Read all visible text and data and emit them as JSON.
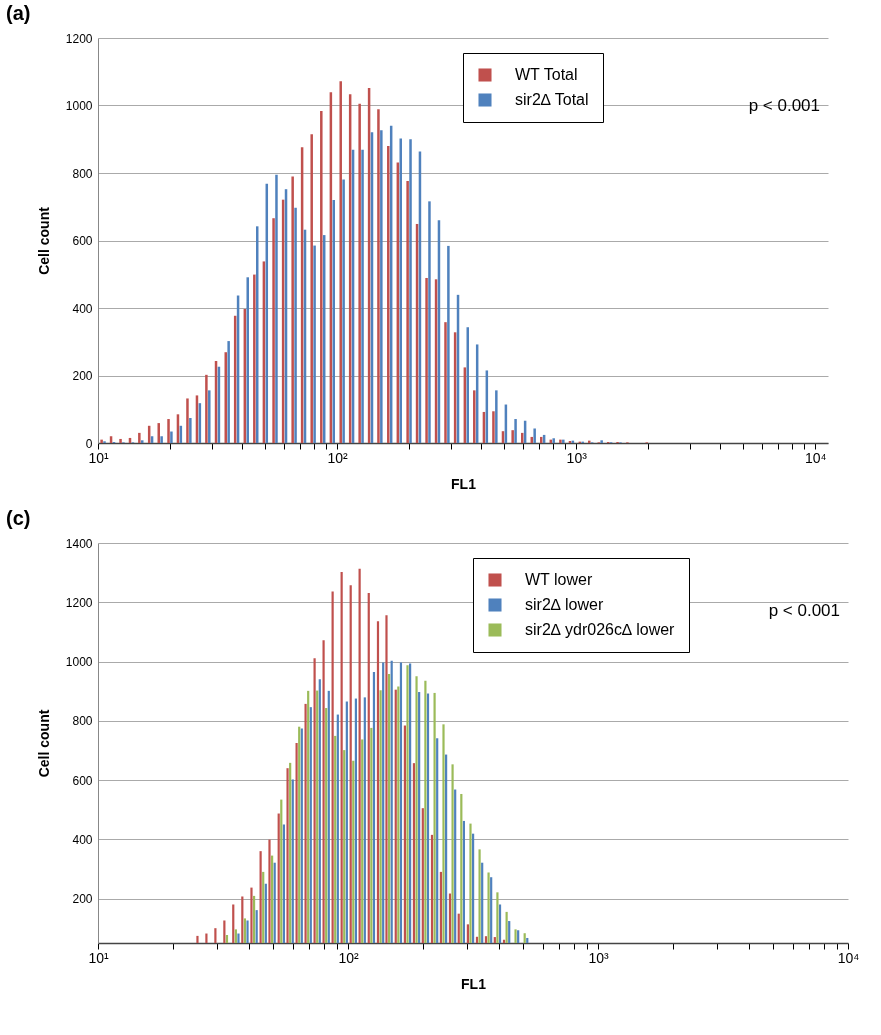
{
  "chart_data": [
    {
      "type": "bar",
      "title": "(a)",
      "xlabel": "FL1",
      "ylabel": "Cell count",
      "log": "x",
      "grid": "y",
      "legend": "top right",
      "x": [
        10.5,
        11.5,
        12.6,
        13.8,
        15.1,
        16.6,
        18.2,
        20.0,
        21.9,
        24.0,
        26.3,
        28.8,
        31.6,
        34.7,
        38.0,
        41.7,
        45.7,
        50.1,
        55.0,
        60.3,
        66.1,
        72.4,
        79.4,
        87.1,
        95.5,
        105,
        115,
        126,
        138,
        151,
        166,
        182,
        200,
        219,
        240,
        263,
        288,
        316,
        347,
        380,
        417,
        457,
        501,
        550,
        603,
        661,
        724,
        794,
        871,
        955,
        1050,
        1150,
        1260,
        1380,
        1510,
        1660,
        2000
      ],
      "series": [
        {
          "name": "WT Total",
          "color": "#c0504d",
          "values": [
            10,
            20,
            12,
            15,
            30,
            51,
            59,
            71,
            85,
            132,
            141,
            202,
            243,
            269,
            377,
            397,
            499,
            538,
            666,
            721,
            790,
            876,
            915,
            984,
            1039,
            1072,
            1033,
            1005,
            1052,
            989,
            880,
            831,
            776,
            649,
            489,
            485,
            358,
            328,
            224,
            156,
            92,
            94,
            35,
            38,
            30,
            18,
            18,
            10,
            10,
            6,
            4,
            7,
            2,
            3,
            3,
            2,
            2
          ]
        },
        {
          "name": "sir2∆ Total",
          "color": "#4f81bd",
          "values": [
            5,
            3,
            2,
            2,
            8,
            20,
            20,
            34,
            51,
            74,
            118,
            156,
            226,
            302,
            437,
            491,
            642,
            768,
            795,
            752,
            697,
            632,
            585,
            616,
            720,
            781,
            869,
            869,
            921,
            927,
            940,
            902,
            900,
            864,
            716,
            660,
            584,
            439,
            343,
            292,
            215,
            156,
            114,
            71,
            66,
            43,
            24,
            14,
            10,
            7,
            4,
            2,
            8,
            2,
            2,
            null,
            0
          ]
        }
      ],
      "xlim": [
        10,
        11300
      ],
      "xticks": [
        {
          "value": 10,
          "label": "10¹"
        },
        {
          "value": 20,
          "label": null
        },
        {
          "value": 30,
          "label": null
        },
        {
          "value": 40,
          "label": null
        },
        {
          "value": 50,
          "label": null
        },
        {
          "value": 60,
          "label": null
        },
        {
          "value": 70,
          "label": null
        },
        {
          "value": 80,
          "label": null
        },
        {
          "value": 90,
          "label": null
        },
        {
          "value": 100,
          "label": "10²"
        },
        {
          "value": 200,
          "label": null
        },
        {
          "value": 300,
          "label": null
        },
        {
          "value": 400,
          "label": null
        },
        {
          "value": 500,
          "label": null
        },
        {
          "value": 600,
          "label": null
        },
        {
          "value": 700,
          "label": null
        },
        {
          "value": 800,
          "label": null
        },
        {
          "value": 900,
          "label": null
        },
        {
          "value": 1000,
          "label": "10³"
        },
        {
          "value": 2000,
          "label": null
        },
        {
          "value": 3000,
          "label": null
        },
        {
          "value": 4000,
          "label": null
        },
        {
          "value": 5000,
          "label": null
        },
        {
          "value": 6000,
          "label": null
        },
        {
          "value": 7000,
          "label": null
        },
        {
          "value": 8000,
          "label": null
        },
        {
          "value": 9000,
          "label": null
        },
        {
          "value": 10000,
          "label": "10⁴"
        }
      ],
      "ylim": [
        0,
        1200
      ],
      "yticks": [
        0,
        200,
        400,
        600,
        800,
        1000,
        1200
      ],
      "annotations": [
        "p < 0.001"
      ]
    },
    {
      "type": "bar",
      "title": "(c)",
      "xlabel": "FL1",
      "ylabel": "Cell count",
      "log": "x",
      "grid": "y",
      "legend": "top right",
      "x": [
        25.6,
        27.8,
        30.2,
        32.8,
        35.6,
        38.7,
        42.1,
        45.8,
        49.7,
        54.1,
        58.7,
        63.8,
        69.3,
        75.3,
        81.8,
        88.9,
        96.6,
        105,
        114,
        124,
        135,
        146,
        159,
        173,
        188,
        204,
        222,
        241,
        262,
        284,
        309,
        336,
        365,
        396,
        431,
        468,
        509
      ],
      "series": [
        {
          "name": "WT lower",
          "color": "#c0504d",
          "values": [
            74,
            82,
            100,
            126,
            180,
            207,
            237,
            360,
            399,
            487,
            640,
            725,
            857,
            1011,
            1072,
            1236,
            1302,
            1257,
            1313,
            1231,
            1136,
            1156,
            905,
            784,
            657,
            505,
            415,
            290,
            217,
            149,
            113,
            71,
            73,
            70,
            61,
            null,
            null
          ]
        },
        {
          "name": "sir2∆ lower",
          "color": "#4f81bd",
          "values": [
            null,
            null,
            null,
            null,
            82,
            126,
            161,
            250,
            321,
            450,
            602,
            774,
            846,
            940,
            901,
            821,
            865,
            875,
            879,
            965,
            997,
            1003,
            997,
            993,
            897,
            892,
            741,
            686,
            568,
            462,
            419,
            321,
            272,
            180,
            124,
            93,
            67
          ]
        },
        {
          "name": "sir2∆ ydr026c∆ lower",
          "color": "#9bbb59",
          "values": [
            null,
            null,
            null,
            77,
            96,
            133,
            209,
            290,
            345,
            534,
            658,
            780,
            901,
            902,
            843,
            749,
            701,
            665,
            737,
            776,
            903,
            958,
            916,
            987,
            950,
            935,
            894,
            788,
            653,
            553,
            453,
            366,
            288,
            221,
            155,
            96,
            83
          ]
        }
      ],
      "xlim": [
        10,
        10000
      ],
      "xticks": [
        {
          "value": 10,
          "label": "10¹"
        },
        {
          "value": 20,
          "label": null
        },
        {
          "value": 30,
          "label": null
        },
        {
          "value": 40,
          "label": null
        },
        {
          "value": 50,
          "label": null
        },
        {
          "value": 60,
          "label": null
        },
        {
          "value": 70,
          "label": null
        },
        {
          "value": 80,
          "label": null
        },
        {
          "value": 90,
          "label": null
        },
        {
          "value": 100,
          "label": "10²"
        },
        {
          "value": 200,
          "label": null
        },
        {
          "value": 300,
          "label": null
        },
        {
          "value": 400,
          "label": null
        },
        {
          "value": 500,
          "label": null
        },
        {
          "value": 600,
          "label": null
        },
        {
          "value": 700,
          "label": null
        },
        {
          "value": 800,
          "label": null
        },
        {
          "value": 900,
          "label": null
        },
        {
          "value": 1000,
          "label": "10³"
        },
        {
          "value": 2000,
          "label": null
        },
        {
          "value": 3000,
          "label": null
        },
        {
          "value": 4000,
          "label": null
        },
        {
          "value": 5000,
          "label": null
        },
        {
          "value": 6000,
          "label": null
        },
        {
          "value": 7000,
          "label": null
        },
        {
          "value": 8000,
          "label": null
        },
        {
          "value": 9000,
          "label": null
        },
        {
          "value": 10000,
          "label": "10⁴"
        }
      ],
      "ylim": [
        50,
        1400
      ],
      "yticks": [
        200,
        400,
        600,
        800,
        1000,
        1200,
        1400
      ],
      "annotations": [
        "p < 0.001"
      ]
    }
  ]
}
